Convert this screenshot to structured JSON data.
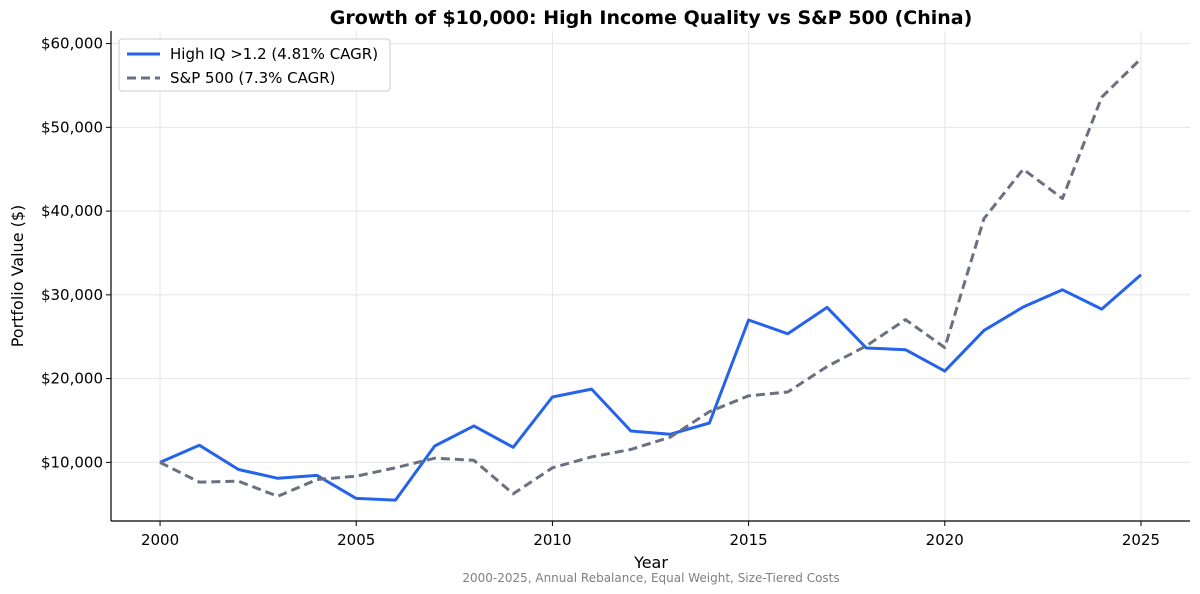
{
  "chart_data": {
    "type": "line",
    "title": "Growth of $10,000: High Income Quality vs S&P 500 (China)",
    "xlabel": "Year",
    "ylabel": "Portfolio Value ($)",
    "footnote": "2000-2025, Annual Rebalance, Equal Weight, Size-Tiered Costs",
    "x": [
      2000,
      2001,
      2002,
      2003,
      2004,
      2005,
      2006,
      2007,
      2008,
      2009,
      2010,
      2011,
      2012,
      2013,
      2014,
      2015,
      2016,
      2017,
      2018,
      2019,
      2020,
      2021,
      2022,
      2023,
      2024,
      2025
    ],
    "xlim": [
      1998.75,
      2026.25
    ],
    "ylim": [
      3000,
      61500
    ],
    "xticks": [
      2000,
      2005,
      2010,
      2015,
      2020,
      2025
    ],
    "xtick_labels": [
      "2000",
      "2005",
      "2010",
      "2015",
      "2020",
      "2025"
    ],
    "yticks": [
      10000,
      20000,
      30000,
      40000,
      50000,
      60000
    ],
    "ytick_labels": [
      "$10,000",
      "$20,000",
      "$30,000",
      "$40,000",
      "$50,000",
      "$60,000"
    ],
    "grid": true,
    "legend_position": "upper-left",
    "series": [
      {
        "name": "High IQ >1.2 (4.81% CAGR)",
        "color": "#2563eb",
        "style": "solid",
        "values": [
          10000,
          12050,
          9150,
          8100,
          8450,
          5700,
          5500,
          11950,
          14350,
          11800,
          17800,
          18750,
          13750,
          13350,
          14700,
          27000,
          25350,
          28500,
          23650,
          23450,
          20900,
          25750,
          28550,
          30600,
          28300,
          32400
        ]
      },
      {
        "name": "S&P 500 (7.3% CAGR)",
        "color": "#6b7080",
        "style": "dashed",
        "values": [
          10000,
          7650,
          7750,
          5950,
          7950,
          8350,
          9350,
          10500,
          10250,
          6250,
          9350,
          10650,
          11550,
          13000,
          16050,
          17950,
          18400,
          21450,
          23900,
          27050,
          23700,
          39100,
          45000,
          41500,
          53600,
          58200
        ]
      }
    ]
  }
}
